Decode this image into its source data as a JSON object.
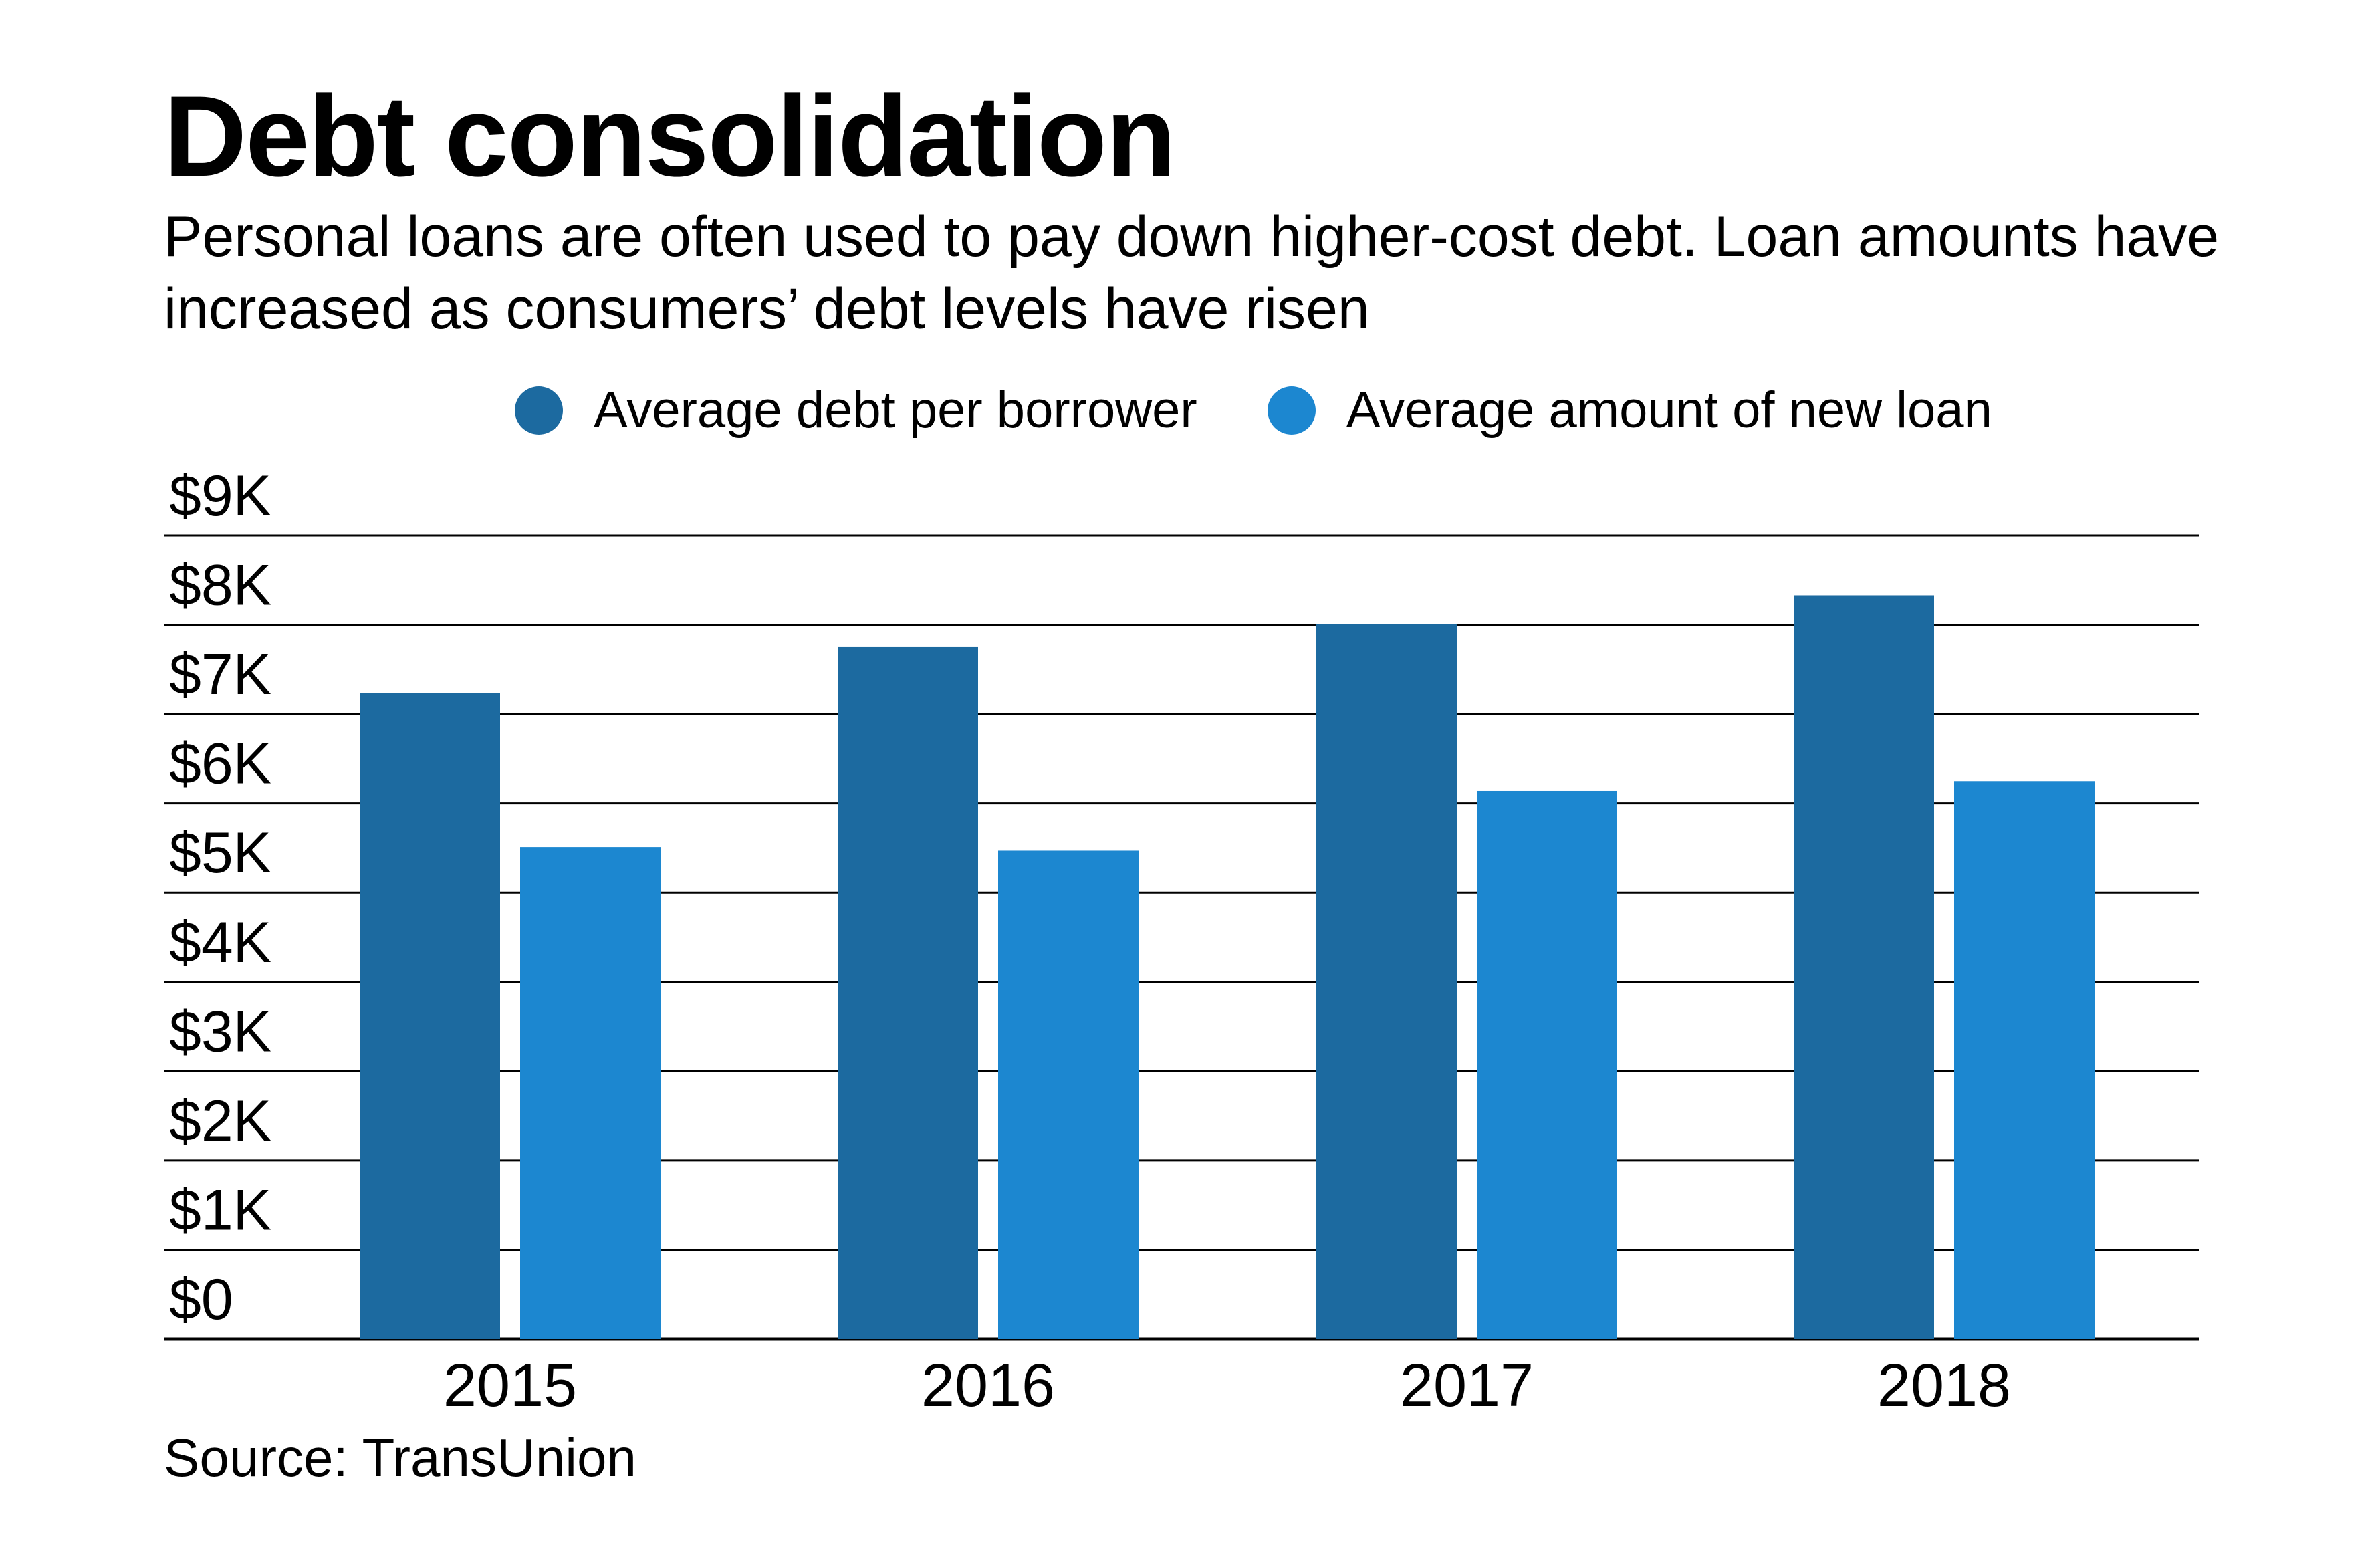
{
  "title": "Debt consolidation",
  "subtitle": "Personal loans are often used to pay down higher-cost debt. Loan amounts have increased as consumers’ debt levels have risen",
  "source": "Source: TransUnion",
  "legend": [
    {
      "label": "Average debt per borrower",
      "color": "#1c6aa0"
    },
    {
      "label": "Average amount of new loan",
      "color": "#1c87d0"
    }
  ],
  "chart_data": {
    "type": "bar",
    "title": "Debt consolidation",
    "subtitle": "Personal loans are often used to pay down higher-cost debt. Loan amounts have increased as consumers’ debt levels have risen",
    "xlabel": "",
    "ylabel": "",
    "categories": [
      "2015",
      "2016",
      "2017",
      "2018"
    ],
    "series": [
      {
        "name": "Average debt per borrower",
        "color": "#1c6aa0",
        "values": [
          7240,
          7750,
          8010,
          8330
        ]
      },
      {
        "name": "Average amount of new loan",
        "color": "#1c87d0",
        "values": [
          5510,
          5470,
          6140,
          6250
        ]
      }
    ],
    "ylim": [
      0,
      9000
    ],
    "yticks": [
      0,
      1000,
      2000,
      3000,
      4000,
      5000,
      6000,
      7000,
      8000,
      9000
    ],
    "ytick_labels": [
      "$0",
      "$1K",
      "$2K",
      "$3K",
      "$4K",
      "$5K",
      "$6K",
      "$7K",
      "$8K",
      "$9K"
    ],
    "grid": true,
    "legend_position": "top"
  }
}
